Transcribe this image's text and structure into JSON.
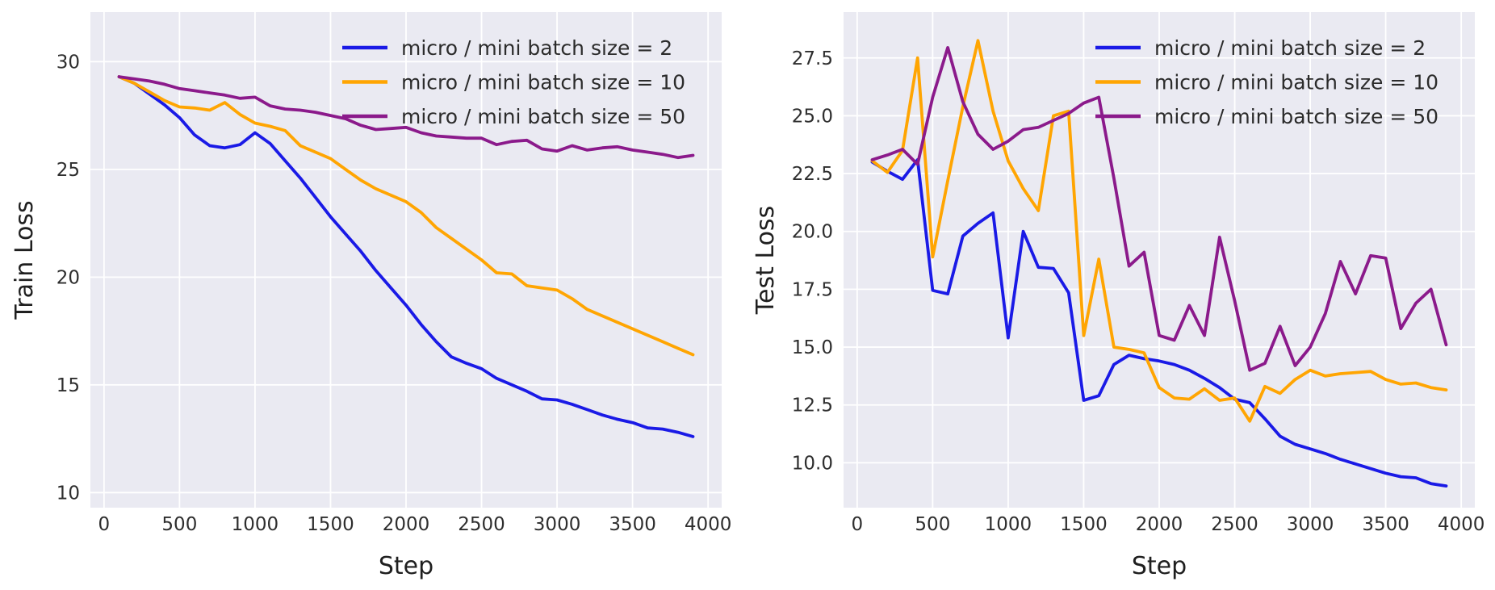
{
  "figure": {
    "background": "#ffffff",
    "plot_background": "#eaeaf2",
    "grid_color": "#ffffff",
    "tick_label_color": "#2e2e2e",
    "axis_label_color": "#1f1f1f",
    "legend_text_color": "#2b2b2b",
    "series_colors": {
      "blue": "#1a1ae6",
      "orange": "#ffa502",
      "purple": "#8b1a8b"
    }
  },
  "legend": {
    "entries": [
      {
        "label": "micro / mini batch size = 2",
        "color": "#1a1ae6"
      },
      {
        "label": "micro / mini batch size = 10",
        "color": "#ffa502"
      },
      {
        "label": "micro / mini batch size = 50",
        "color": "#8b1a8b"
      }
    ]
  },
  "chart_data": [
    {
      "type": "line",
      "title": "",
      "xlabel": "Step",
      "ylabel": "Train Loss",
      "grid": true,
      "legend_position": "upper right",
      "xlim": [
        -90,
        4090
      ],
      "ylim": [
        9.3,
        32.3
      ],
      "xticks": [
        0,
        500,
        1000,
        1500,
        2000,
        2500,
        3000,
        3500,
        4000
      ],
      "xtick_labels": [
        "0",
        "500",
        "1000",
        "1500",
        "2000",
        "2500",
        "3000",
        "3500",
        "4000"
      ],
      "yticks": [
        10,
        15,
        20,
        25,
        30
      ],
      "ytick_labels": [
        "10",
        "15",
        "20",
        "25",
        "30"
      ],
      "x": [
        100,
        200,
        300,
        400,
        500,
        600,
        700,
        800,
        900,
        1000,
        1100,
        1200,
        1300,
        1400,
        1500,
        1600,
        1700,
        1800,
        1900,
        2000,
        2100,
        2200,
        2300,
        2400,
        2500,
        2600,
        2700,
        2800,
        2900,
        3000,
        3100,
        3200,
        3300,
        3400,
        3500,
        3600,
        3700,
        3800,
        3900
      ],
      "series": [
        {
          "name": "micro / mini batch size = 2",
          "color": "#1a1ae6",
          "values": [
            29.3,
            29.0,
            28.5,
            28.0,
            27.4,
            26.6,
            26.1,
            26.0,
            26.15,
            26.7,
            26.2,
            25.4,
            24.6,
            23.7,
            22.8,
            22.0,
            21.2,
            20.3,
            19.5,
            18.7,
            17.8,
            17.0,
            16.3,
            16.0,
            15.75,
            15.3,
            15.0,
            14.7,
            14.35,
            14.3,
            14.1,
            13.85,
            13.6,
            13.4,
            13.25,
            13.0,
            12.95,
            12.8,
            12.6
          ]
        },
        {
          "name": "micro / mini batch size = 10",
          "color": "#ffa502",
          "values": [
            29.3,
            29.0,
            28.6,
            28.2,
            27.9,
            27.85,
            27.75,
            28.1,
            27.55,
            27.15,
            27.0,
            26.8,
            26.1,
            25.8,
            25.5,
            25.0,
            24.5,
            24.1,
            23.8,
            23.5,
            23.0,
            22.3,
            21.8,
            21.3,
            20.8,
            20.2,
            20.15,
            19.6,
            19.5,
            19.4,
            19.0,
            18.5,
            18.2,
            17.9,
            17.6,
            17.3,
            17.0,
            16.7,
            16.4
          ]
        },
        {
          "name": "micro / mini batch size = 50",
          "color": "#8b1a8b",
          "values": [
            29.3,
            29.2,
            29.1,
            28.95,
            28.75,
            28.65,
            28.55,
            28.45,
            28.3,
            28.35,
            27.95,
            27.8,
            27.75,
            27.65,
            27.5,
            27.35,
            27.05,
            26.85,
            26.9,
            26.95,
            26.7,
            26.55,
            26.5,
            26.45,
            26.45,
            26.15,
            26.3,
            26.35,
            25.95,
            25.85,
            26.1,
            25.9,
            26.0,
            26.05,
            25.9,
            25.8,
            25.7,
            25.55,
            25.65
          ]
        }
      ]
    },
    {
      "type": "line",
      "title": "",
      "xlabel": "Step",
      "ylabel": "Test Loss",
      "grid": true,
      "legend_position": "upper right",
      "xlim": [
        -90,
        4090
      ],
      "ylim": [
        8.06,
        29.48
      ],
      "xticks": [
        0,
        500,
        1000,
        1500,
        2000,
        2500,
        3000,
        3500,
        4000
      ],
      "xtick_labels": [
        "0",
        "500",
        "1000",
        "1500",
        "2000",
        "2500",
        "3000",
        "3500",
        "4000"
      ],
      "yticks": [
        10.0,
        12.5,
        15.0,
        17.5,
        20.0,
        22.5,
        25.0,
        27.5
      ],
      "ytick_labels": [
        "10.0",
        "12.5",
        "15.0",
        "17.5",
        "20.0",
        "22.5",
        "25.0",
        "27.5"
      ],
      "x": [
        100,
        200,
        300,
        400,
        500,
        600,
        700,
        800,
        900,
        1000,
        1100,
        1200,
        1300,
        1400,
        1500,
        1600,
        1700,
        1800,
        1900,
        2000,
        2100,
        2200,
        2300,
        2400,
        2500,
        2600,
        2700,
        2800,
        2900,
        3000,
        3100,
        3200,
        3300,
        3400,
        3500,
        3600,
        3700,
        3800,
        3900
      ],
      "series": [
        {
          "name": "micro / mini batch size = 2",
          "color": "#1a1ae6",
          "values": [
            23.0,
            22.6,
            22.25,
            23.1,
            17.45,
            17.3,
            19.8,
            20.35,
            20.8,
            15.4,
            20.0,
            18.45,
            18.4,
            17.35,
            12.7,
            12.9,
            14.25,
            14.65,
            14.5,
            14.4,
            14.25,
            14.0,
            13.65,
            13.25,
            12.75,
            12.6,
            11.9,
            11.15,
            10.8,
            10.6,
            10.4,
            10.15,
            9.95,
            9.75,
            9.55,
            9.4,
            9.35,
            9.1,
            9.0
          ]
        },
        {
          "name": "micro / mini batch size = 10",
          "color": "#ffa502",
          "values": [
            23.05,
            22.55,
            23.5,
            27.5,
            18.9,
            22.2,
            25.4,
            28.25,
            25.2,
            23.05,
            21.85,
            20.9,
            25.0,
            25.2,
            15.5,
            18.8,
            15.0,
            14.9,
            14.75,
            13.25,
            12.8,
            12.75,
            13.2,
            12.7,
            12.8,
            11.8,
            13.3,
            13.0,
            13.6,
            14.0,
            13.75,
            13.85,
            13.9,
            13.95,
            13.6,
            13.4,
            13.45,
            13.25,
            13.15
          ]
        },
        {
          "name": "micro / mini batch size = 50",
          "color": "#8b1a8b",
          "values": [
            23.1,
            23.3,
            23.55,
            22.9,
            25.8,
            27.95,
            25.6,
            24.2,
            23.55,
            23.9,
            24.4,
            24.5,
            24.8,
            25.1,
            25.55,
            25.8,
            22.3,
            18.5,
            19.1,
            15.5,
            15.3,
            16.8,
            15.5,
            19.75,
            17.0,
            14.0,
            14.3,
            15.9,
            14.2,
            15.0,
            16.45,
            18.7,
            17.3,
            18.95,
            18.85,
            15.8,
            16.9,
            17.5,
            15.1
          ]
        }
      ]
    }
  ]
}
